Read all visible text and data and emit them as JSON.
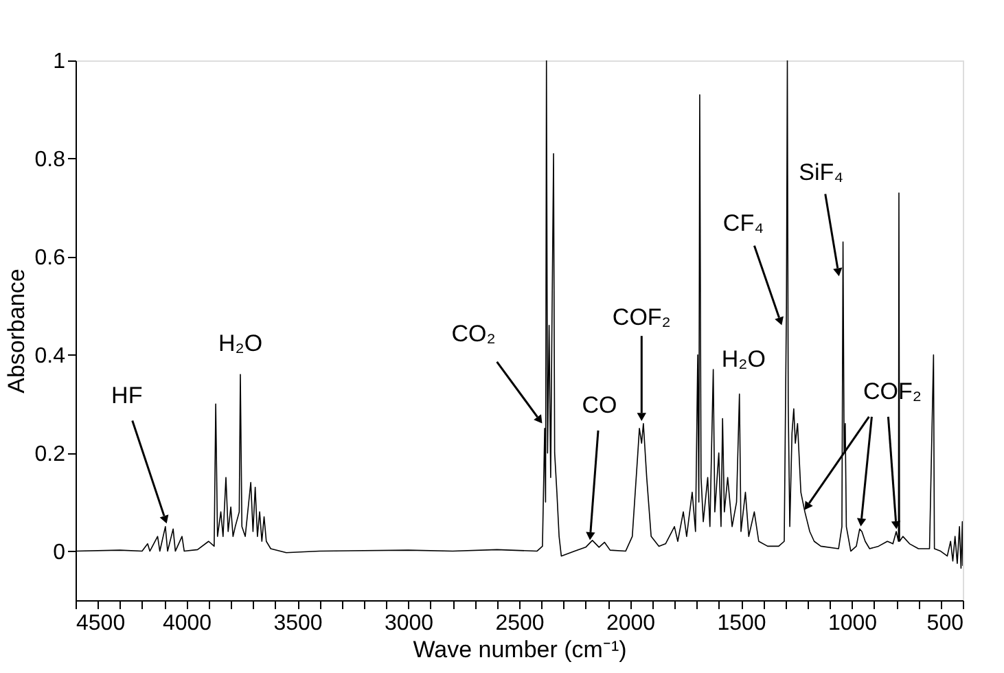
{
  "chart_data": {
    "type": "line",
    "xlabel": "Wave number (cm⁻¹)",
    "ylabel": "Absorbance",
    "xlim": [
      4500,
      500
    ],
    "ylim": [
      -0.1,
      1
    ],
    "xticks": [
      4500,
      {
        "value": 4400,
        "label": null
      },
      {
        "value": 4300,
        "label": null
      },
      {
        "value": 4200,
        "label": null
      },
      {
        "value": 4100,
        "label": null
      },
      4000,
      {
        "value": 3900,
        "label": null
      },
      {
        "value": 3800,
        "label": null
      },
      {
        "value": 3700,
        "label": null
      },
      {
        "value": 3600,
        "label": null
      },
      3500,
      {
        "value": 3400,
        "label": null
      },
      {
        "value": 3300,
        "label": null
      },
      {
        "value": 3200,
        "label": null
      },
      {
        "value": 3100,
        "label": null
      },
      3000,
      {
        "value": 2900,
        "label": null
      },
      {
        "value": 2800,
        "label": null
      },
      {
        "value": 2700,
        "label": null
      },
      {
        "value": 2600,
        "label": null
      },
      2500,
      {
        "value": 2400,
        "label": null
      },
      {
        "value": 2300,
        "label": null
      },
      {
        "value": 2200,
        "label": null
      },
      {
        "value": 2100,
        "label": null
      },
      2000,
      {
        "value": 1900,
        "label": null
      },
      {
        "value": 1800,
        "label": null
      },
      {
        "value": 1700,
        "label": null
      },
      {
        "value": 1600,
        "label": null
      },
      1500,
      {
        "value": 1400,
        "label": null
      },
      {
        "value": 1300,
        "label": null
      },
      {
        "value": 1200,
        "label": null
      },
      {
        "value": 1100,
        "label": null
      },
      1000,
      {
        "value": 900,
        "label": null
      },
      {
        "value": 800,
        "label": null
      },
      {
        "value": 700,
        "label": null
      },
      {
        "value": 600,
        "label": null
      },
      500
    ],
    "yticks": [
      0,
      0.2,
      0.4,
      0.6,
      0.8,
      1
    ],
    "grid": false,
    "marker": "none",
    "line_style": "solid",
    "series": [
      {
        "color": "#000000",
        "x": [
          4500,
          4300,
          4200,
          4175,
          4165,
          4130,
          4120,
          4095,
          4085,
          4060,
          4050,
          4020,
          4010,
          3950,
          3900,
          3875,
          3868,
          3860,
          3845,
          3835,
          3822,
          3812,
          3800,
          3790,
          3780,
          3762,
          3757,
          3750,
          3735,
          3710,
          3700,
          3690,
          3680,
          3670,
          3660,
          3650,
          3640,
          3620,
          3550,
          3400,
          3000,
          2800,
          2600,
          2420,
          2395,
          2385,
          2381,
          2377,
          2372,
          2365,
          2358,
          2352,
          2345,
          2340,
          2330,
          2320,
          2310,
          2250,
          2200,
          2170,
          2140,
          2115,
          2090,
          2020,
          1990,
          1965,
          1958,
          1948,
          1940,
          1925,
          1905,
          1870,
          1840,
          1800,
          1785,
          1760,
          1745,
          1720,
          1705,
          1695,
          1690,
          1686,
          1680,
          1670,
          1650,
          1640,
          1625,
          1618,
          1600,
          1590,
          1583,
          1575,
          1560,
          1540,
          1520,
          1507,
          1500,
          1480,
          1465,
          1440,
          1420,
          1380,
          1330,
          1305,
          1295,
          1291,
          1287,
          1280,
          1270,
          1262,
          1255,
          1245,
          1230,
          1212,
          1190,
          1170,
          1140,
          1060,
          1045,
          1040,
          1035,
          1030,
          1025,
          1005,
          980,
          965,
          955,
          940,
          920,
          880,
          840,
          815,
          800,
          790,
          788,
          785,
          770,
          740,
          700,
          650,
          632,
          628,
          600,
          570,
          555,
          545,
          535,
          525,
          515,
          508,
          502,
          500
        ],
        "values": [
          0.0,
          0.002,
          0.0,
          0.015,
          0.0,
          0.03,
          0.0,
          0.05,
          0.0,
          0.045,
          0.0,
          0.03,
          0.0,
          0.003,
          0.02,
          0.01,
          0.3,
          0.03,
          0.08,
          0.03,
          0.15,
          0.04,
          0.09,
          0.03,
          0.05,
          0.08,
          0.36,
          0.05,
          0.03,
          0.14,
          0.04,
          0.13,
          0.03,
          0.08,
          0.02,
          0.07,
          0.02,
          0.005,
          -0.003,
          0.0,
          0.002,
          0.0,
          0.003,
          0.0,
          0.01,
          0.25,
          0.1,
          1.0,
          0.2,
          0.46,
          0.15,
          0.47,
          0.81,
          0.2,
          0.12,
          0.03,
          -0.01,
          0.0,
          0.008,
          0.022,
          0.008,
          0.018,
          0.002,
          0.0,
          0.03,
          0.2,
          0.25,
          0.22,
          0.26,
          0.15,
          0.03,
          0.01,
          0.015,
          0.05,
          0.02,
          0.08,
          0.03,
          0.12,
          0.04,
          0.4,
          0.1,
          0.93,
          0.15,
          0.06,
          0.15,
          0.05,
          0.37,
          0.08,
          0.2,
          0.05,
          0.27,
          0.08,
          0.15,
          0.05,
          0.1,
          0.32,
          0.04,
          0.12,
          0.03,
          0.08,
          0.02,
          0.01,
          0.01,
          0.02,
          0.5,
          1.0,
          0.3,
          0.05,
          0.24,
          0.29,
          0.22,
          0.26,
          0.12,
          0.08,
          0.04,
          0.02,
          0.01,
          0.005,
          0.05,
          0.63,
          0.2,
          0.26,
          0.05,
          0.0,
          0.01,
          0.045,
          0.04,
          0.02,
          0.005,
          0.01,
          0.02,
          0.015,
          0.04,
          0.02,
          0.73,
          0.02,
          0.03,
          0.015,
          0.005,
          0.005,
          0.4,
          0.005,
          0.0,
          -0.01,
          0.02,
          -0.02,
          0.03,
          -0.025,
          0.05,
          -0.035,
          0.06,
          -0.03
        ]
      }
    ],
    "annotations": [
      {
        "text": "HF",
        "x": 4089,
        "y": 0.056
      },
      {
        "text": "H₂O",
        "x": 3757,
        "y": 0.36
      },
      {
        "text": "CO₂",
        "x": 2396,
        "y": 0.26
      },
      {
        "text": "CO",
        "x": 2181,
        "y": 0.022
      },
      {
        "text": "COF₂",
        "x": 1948,
        "y": 0.265
      },
      {
        "text": "H₂O",
        "x": 1507,
        "y": 0.32
      },
      {
        "text": "CF₄",
        "x": 1316,
        "y": 0.46
      },
      {
        "text": "SiF₄",
        "x": 1058,
        "y": 0.56
      },
      {
        "text": "COF₂",
        "x": 960,
        "y": 0.05
      }
    ]
  }
}
